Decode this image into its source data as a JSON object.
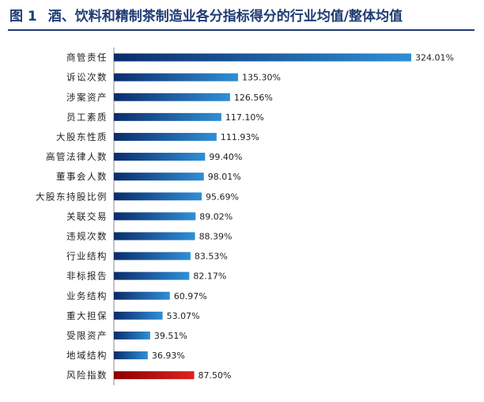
{
  "title": {
    "figure": "图 1",
    "text": "酒、饮料和精制茶制造业各分指标得分的行业均值/整体均值"
  },
  "colors": {
    "title": "#1f3b73",
    "bar_start": "#0b2c6b",
    "bar_end": "#2f8fd6",
    "highlight_start": "#8b0000",
    "highlight_end": "#e02020"
  },
  "chart_data": {
    "type": "bar",
    "orientation": "horizontal",
    "categories": [
      "商管责任",
      "诉讼次数",
      "涉案资产",
      "员工素质",
      "大股东性质",
      "高管法律人数",
      "董事会人数",
      "大股东持股比例",
      "关联交易",
      "违规次数",
      "行业结构",
      "非标报告",
      "业务结构",
      "重大担保",
      "受限资产",
      "地域结构",
      "风险指数"
    ],
    "values": [
      324.01,
      135.3,
      126.56,
      117.1,
      111.93,
      99.4,
      98.01,
      95.69,
      89.02,
      88.39,
      83.53,
      82.17,
      60.97,
      53.07,
      39.51,
      36.93,
      87.5
    ],
    "value_labels": [
      "324.01%",
      "135.30%",
      "126.56%",
      "117.10%",
      "111.93%",
      "99.40%",
      "98.01%",
      "95.69%",
      "89.02%",
      "88.39%",
      "83.53%",
      "82.17%",
      "60.97%",
      "53.07%",
      "39.51%",
      "36.93%",
      "87.50%"
    ],
    "highlight": [
      "风险指数"
    ],
    "xlim": [
      0,
      324.01
    ],
    "grid": false,
    "legend": "none"
  }
}
